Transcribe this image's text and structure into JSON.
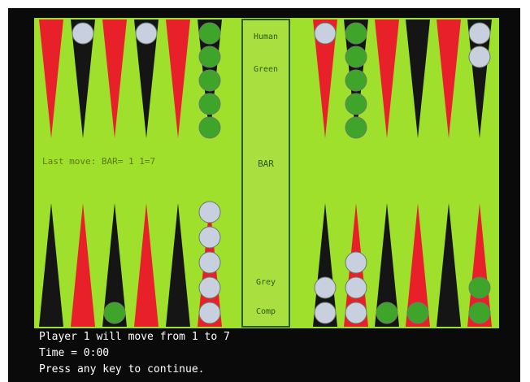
{
  "board": {
    "status": "Last move: BAR= 1   1=7",
    "bar_label": "BAR",
    "top_label": "Human",
    "green_label": "Green",
    "grey_label": "Grey",
    "bottom_label": "Comp"
  },
  "console": {
    "lines": [
      "Player 1 will move from 1 to 7",
      "Time = 0:00",
      "Press any key to continue."
    ]
  }
}
